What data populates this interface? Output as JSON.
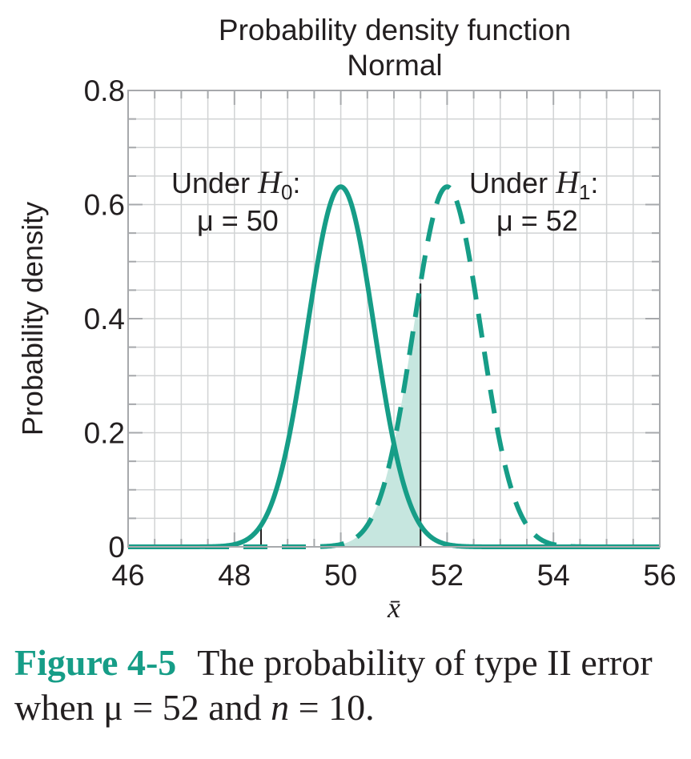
{
  "chart_data": {
    "type": "line",
    "title": "Probability density function",
    "subtitle": "Normal",
    "xlabel": "x̄",
    "ylabel": "Probability density",
    "xlim": [
      46,
      56
    ],
    "ylim": [
      0,
      0.8
    ],
    "x_ticks": [
      "46",
      "48",
      "50",
      "52",
      "54",
      "56"
    ],
    "y_ticks": [
      "0",
      "0.2",
      "0.4",
      "0.6",
      "0.8"
    ],
    "grid": true,
    "distributions": [
      {
        "name": "Under H0",
        "type": "normal",
        "mean": 50,
        "sd": 0.632,
        "style": "solid"
      },
      {
        "name": "Under H1",
        "type": "normal",
        "mean": 52,
        "sd": 0.632,
        "style": "dashed"
      }
    ],
    "critical_values": [
      48.5,
      51.5
    ],
    "shaded_region": {
      "under": "H1",
      "from": 48.5,
      "to": 51.5,
      "meaning": "beta"
    },
    "color": "#169d87",
    "annotations": [
      {
        "line1": "Under ",
        "sym": "H",
        "sub": "0",
        "suffix": ":",
        "line2": "μ = 50"
      },
      {
        "line1": "Under ",
        "sym": "H",
        "sub": "1",
        "suffix": ":",
        "line2": "μ = 52"
      }
    ]
  },
  "caption": {
    "label": "Figure 4-5",
    "text_part1": "The probability of type II error when ",
    "mu": "μ",
    "text_part2": " = 52 and ",
    "n": "n",
    "text_part3": " = 10."
  }
}
